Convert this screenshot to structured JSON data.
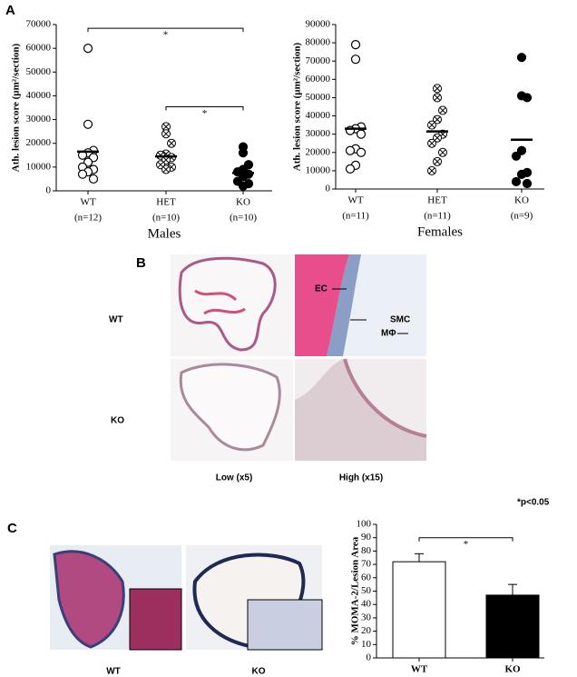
{
  "panel_labels": [
    "A",
    "B",
    "C"
  ],
  "chart_data": [
    {
      "type": "dot",
      "ylabel": "Ath. lesion score (µm²/section)",
      "xlabel": "Males",
      "categories": [
        "WT",
        "HET",
        "KO"
      ],
      "n_labels": [
        "(n=12)",
        "(n=10)",
        "(n=10)"
      ],
      "groups": [
        {
          "marker": "open",
          "values": [
            60000,
            28000,
            17000,
            16000,
            15000,
            14000,
            12000,
            10000,
            9000,
            8000,
            7000,
            5000
          ],
          "mean": 16500
        },
        {
          "marker": "crossed",
          "values": [
            27000,
            24000,
            20000,
            15500,
            15000,
            14000,
            13000,
            11000,
            10000,
            9000
          ],
          "mean": 14500
        },
        {
          "marker": "filled",
          "values": [
            18500,
            16000,
            11000,
            9000,
            8000,
            7000,
            6000,
            4000,
            3000,
            2000
          ],
          "mean": 7500
        }
      ],
      "ylim": [
        0,
        70000
      ],
      "yticks": [
        0,
        10000,
        20000,
        30000,
        40000,
        50000,
        60000,
        70000
      ],
      "brackets": [
        {
          "label": "*",
          "span": [
            "WT",
            "KO"
          ]
        },
        {
          "label": "*",
          "span": [
            "HET",
            "KO"
          ]
        }
      ]
    },
    {
      "type": "dot",
      "ylabel": "Ath. lesion score (µm²/section)",
      "xlabel": "Females",
      "categories": [
        "WT",
        "HET",
        "KO"
      ],
      "n_labels": [
        "(n=11)",
        "(n=11)",
        "(n=9)"
      ],
      "groups": [
        {
          "marker": "open",
          "values": [
            79000,
            71000,
            34000,
            33000,
            32000,
            30000,
            22000,
            21000,
            20000,
            13000,
            11000
          ],
          "mean": 33000
        },
        {
          "marker": "crossed",
          "values": [
            55000,
            50000,
            43000,
            38000,
            35000,
            30000,
            28000,
            25000,
            20000,
            15000,
            10000
          ],
          "mean": 31500
        },
        {
          "marker": "filled",
          "values": [
            72000,
            51000,
            50000,
            21000,
            18000,
            9000,
            8000,
            4000,
            3000
          ],
          "mean": 27000
        }
      ],
      "ylim": [
        0,
        90000
      ],
      "yticks": [
        0,
        10000,
        20000,
        30000,
        40000,
        50000,
        60000,
        70000,
        80000,
        90000
      ],
      "brackets": []
    },
    {
      "type": "bar",
      "ylabel": "% MOMA-2/Lesion Area",
      "note": "*p<0.05",
      "categories": [
        "WT",
        "KO"
      ],
      "values": [
        72,
        47
      ],
      "errors": [
        6,
        8
      ],
      "colors": [
        "#ffffff",
        "#000000"
      ],
      "ylim": [
        0,
        100
      ],
      "yticks": [
        0,
        10,
        20,
        30,
        40,
        50,
        60,
        70,
        80,
        90,
        100
      ],
      "brackets": [
        {
          "label": "*",
          "span": [
            "WT",
            "KO"
          ]
        }
      ]
    }
  ],
  "panel_b": {
    "rows": [
      "WT",
      "KO"
    ],
    "columns": [
      "Low (x5)",
      "High (x15)"
    ],
    "annotations": [
      "EC",
      "SMC",
      "MΦ"
    ]
  },
  "panel_c": {
    "images": [
      "WT",
      "KO"
    ]
  }
}
